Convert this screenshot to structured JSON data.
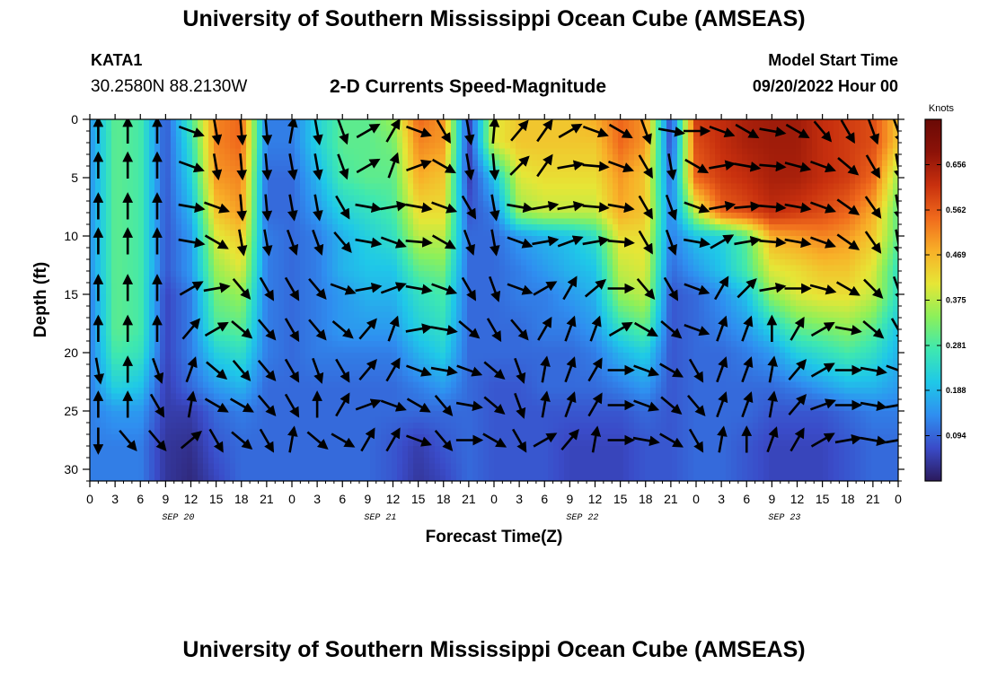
{
  "header": {
    "title": "University of Southern Mississippi Ocean Cube (AMSEAS)",
    "station_id": "KATA1",
    "coordinates": "30.2580N  88.2130W",
    "plot_title": "2-D Currents Speed-Magnitude",
    "model_start_label": "Model Start Time",
    "model_start_value": "09/20/2022 Hour 00"
  },
  "footer": {
    "title": "University of Southern Mississippi Ocean Cube (AMSEAS)"
  },
  "chart_data": {
    "type": "heatmap",
    "xlabel": "Forecast Time(Z)",
    "ylabel": "Depth (ft)",
    "x_tick_labels": [
      "0",
      "3",
      "6",
      "9",
      "12",
      "15",
      "18",
      "21",
      "0",
      "3",
      "6",
      "9",
      "12",
      "15",
      "18",
      "21",
      "0",
      "3",
      "6",
      "9",
      "12",
      "15",
      "18",
      "21",
      "0",
      "3",
      "6",
      "9",
      "12",
      "15",
      "18",
      "21",
      "0"
    ],
    "date_labels": [
      "SEP 20",
      "SEP 21",
      "SEP 22",
      "SEP 23"
    ],
    "date_label_hours": [
      10.5,
      34.5,
      58.5,
      82.5
    ],
    "x_range_hours": [
      0,
      96
    ],
    "y_ticks": [
      "0",
      "5",
      "10",
      "15",
      "20",
      "25",
      "30"
    ],
    "y_range": [
      0,
      31
    ],
    "y_reversed": true,
    "colorbar": {
      "unit": "Knots",
      "ticks": [
        "0.656",
        "0.562",
        "0.469",
        "0.375",
        "0.281",
        "0.188",
        "0.094"
      ],
      "range": [
        0,
        0.75
      ],
      "colors": [
        "#2b1a5c",
        "#3a4bc8",
        "#2f8ef0",
        "#1fc8e8",
        "#3ee8b0",
        "#8cf05a",
        "#e6e636",
        "#f8b028",
        "#f06a1c",
        "#c8300e",
        "#8c1208",
        "#6a0a06"
      ]
    },
    "speed_field": {
      "description_units": "knots",
      "times": [
        0,
        3,
        6,
        9,
        12,
        15,
        18,
        21,
        24,
        27,
        30,
        33,
        36,
        39,
        42,
        45,
        48,
        51,
        54,
        57,
        60,
        63,
        66,
        69,
        72,
        75,
        78,
        81,
        84,
        87,
        90,
        93,
        96
      ],
      "depths": [
        0,
        2,
        5,
        8,
        10,
        13,
        15,
        18,
        20,
        23,
        25,
        28,
        31
      ],
      "values": [
        [
          0.15,
          0.3,
          0.28,
          0.08,
          0.28,
          0.52,
          0.55,
          0.12,
          0.12,
          0.22,
          0.3,
          0.3,
          0.35,
          0.55,
          0.5,
          0.05,
          0.4,
          0.45,
          0.45,
          0.45,
          0.48,
          0.55,
          0.5,
          0.06,
          0.6,
          0.62,
          0.65,
          0.66,
          0.66,
          0.62,
          0.6,
          0.58,
          0.45
        ],
        [
          0.14,
          0.3,
          0.28,
          0.08,
          0.25,
          0.52,
          0.55,
          0.12,
          0.12,
          0.22,
          0.3,
          0.3,
          0.32,
          0.52,
          0.5,
          0.05,
          0.4,
          0.45,
          0.45,
          0.45,
          0.45,
          0.55,
          0.5,
          0.06,
          0.58,
          0.62,
          0.65,
          0.66,
          0.66,
          0.62,
          0.6,
          0.58,
          0.45
        ],
        [
          0.14,
          0.3,
          0.28,
          0.08,
          0.22,
          0.5,
          0.52,
          0.1,
          0.1,
          0.18,
          0.28,
          0.3,
          0.3,
          0.48,
          0.45,
          0.05,
          0.2,
          0.4,
          0.42,
          0.42,
          0.42,
          0.5,
          0.45,
          0.1,
          0.55,
          0.6,
          0.62,
          0.65,
          0.65,
          0.62,
          0.6,
          0.55,
          0.35
        ],
        [
          0.14,
          0.3,
          0.28,
          0.08,
          0.18,
          0.45,
          0.5,
          0.1,
          0.1,
          0.15,
          0.22,
          0.25,
          0.28,
          0.42,
          0.42,
          0.08,
          0.12,
          0.35,
          0.38,
          0.38,
          0.38,
          0.48,
          0.45,
          0.12,
          0.38,
          0.55,
          0.58,
          0.62,
          0.6,
          0.58,
          0.55,
          0.48,
          0.3
        ],
        [
          0.14,
          0.3,
          0.28,
          0.08,
          0.15,
          0.4,
          0.45,
          0.12,
          0.1,
          0.12,
          0.18,
          0.22,
          0.25,
          0.38,
          0.38,
          0.1,
          0.1,
          0.15,
          0.18,
          0.2,
          0.25,
          0.42,
          0.42,
          0.12,
          0.2,
          0.22,
          0.3,
          0.48,
          0.5,
          0.52,
          0.5,
          0.45,
          0.3
        ],
        [
          0.14,
          0.3,
          0.28,
          0.08,
          0.15,
          0.35,
          0.4,
          0.12,
          0.1,
          0.12,
          0.18,
          0.2,
          0.2,
          0.3,
          0.32,
          0.1,
          0.1,
          0.12,
          0.15,
          0.18,
          0.2,
          0.38,
          0.4,
          0.1,
          0.15,
          0.2,
          0.28,
          0.4,
          0.42,
          0.45,
          0.45,
          0.4,
          0.25
        ],
        [
          0.12,
          0.3,
          0.28,
          0.06,
          0.12,
          0.32,
          0.35,
          0.12,
          0.1,
          0.12,
          0.15,
          0.18,
          0.18,
          0.25,
          0.28,
          0.1,
          0.1,
          0.12,
          0.12,
          0.15,
          0.18,
          0.35,
          0.38,
          0.08,
          0.1,
          0.14,
          0.2,
          0.35,
          0.4,
          0.42,
          0.42,
          0.38,
          0.25
        ],
        [
          0.12,
          0.3,
          0.28,
          0.06,
          0.12,
          0.28,
          0.3,
          0.12,
          0.1,
          0.12,
          0.15,
          0.15,
          0.15,
          0.22,
          0.25,
          0.1,
          0.1,
          0.1,
          0.12,
          0.12,
          0.15,
          0.25,
          0.3,
          0.08,
          0.1,
          0.12,
          0.15,
          0.22,
          0.3,
          0.32,
          0.34,
          0.3,
          0.2
        ],
        [
          0.12,
          0.28,
          0.26,
          0.06,
          0.12,
          0.22,
          0.25,
          0.12,
          0.1,
          0.12,
          0.12,
          0.12,
          0.12,
          0.18,
          0.22,
          0.1,
          0.1,
          0.1,
          0.1,
          0.1,
          0.12,
          0.18,
          0.22,
          0.08,
          0.1,
          0.1,
          0.12,
          0.15,
          0.22,
          0.25,
          0.28,
          0.25,
          0.18
        ],
        [
          0.12,
          0.22,
          0.2,
          0.05,
          0.1,
          0.15,
          0.18,
          0.1,
          0.1,
          0.1,
          0.1,
          0.1,
          0.1,
          0.12,
          0.15,
          0.1,
          0.08,
          0.08,
          0.1,
          0.1,
          0.1,
          0.12,
          0.15,
          0.08,
          0.1,
          0.1,
          0.1,
          0.1,
          0.12,
          0.15,
          0.18,
          0.18,
          0.15
        ],
        [
          0.12,
          0.15,
          0.15,
          0.05,
          0.05,
          0.1,
          0.12,
          0.1,
          0.1,
          0.1,
          0.1,
          0.1,
          0.1,
          0.1,
          0.1,
          0.1,
          0.08,
          0.08,
          0.08,
          0.08,
          0.08,
          0.08,
          0.1,
          0.08,
          0.1,
          0.1,
          0.1,
          0.08,
          0.08,
          0.08,
          0.1,
          0.12,
          0.12
        ],
        [
          0.12,
          0.12,
          0.12,
          0.04,
          0.03,
          0.08,
          0.1,
          0.1,
          0.1,
          0.1,
          0.1,
          0.1,
          0.08,
          0.05,
          0.08,
          0.1,
          0.08,
          0.08,
          0.08,
          0.06,
          0.06,
          0.06,
          0.08,
          0.08,
          0.1,
          0.1,
          0.08,
          0.06,
          0.06,
          0.06,
          0.08,
          0.1,
          0.1
        ],
        [
          0.12,
          0.12,
          0.12,
          0.04,
          0.02,
          0.06,
          0.1,
          0.1,
          0.1,
          0.1,
          0.1,
          0.1,
          0.08,
          0.04,
          0.06,
          0.1,
          0.08,
          0.08,
          0.08,
          0.06,
          0.06,
          0.06,
          0.08,
          0.08,
          0.1,
          0.1,
          0.08,
          0.06,
          0.06,
          0.06,
          0.08,
          0.1,
          0.1
        ]
      ]
    },
    "vectors": {
      "description": "current direction arrows; angle in degrees clockwise from north (up)",
      "times": [
        1,
        4.5,
        8,
        12,
        15,
        18,
        21,
        24,
        27,
        30,
        33,
        36,
        39,
        42,
        45,
        48,
        51,
        54,
        57,
        60,
        63,
        66,
        69,
        72,
        75,
        78,
        81,
        84,
        87,
        90,
        93,
        96
      ],
      "depths": [
        1,
        4,
        7.5,
        10.5,
        14.5,
        18,
        21.5,
        24.5,
        27.5
      ],
      "angles": [
        [
          0,
          0,
          0,
          110,
          170,
          175,
          175,
          10,
          170,
          160,
          60,
          30,
          110,
          150,
          170,
          5,
          40,
          35,
          60,
          110,
          120,
          160,
          100,
          90,
          110,
          120,
          100,
          120,
          140,
          150,
          160,
          160
        ],
        [
          0,
          0,
          0,
          110,
          170,
          175,
          175,
          170,
          170,
          160,
          60,
          20,
          70,
          120,
          170,
          175,
          45,
          35,
          80,
          95,
          110,
          150,
          170,
          120,
          80,
          100,
          95,
          105,
          110,
          130,
          150,
          170
        ],
        [
          0,
          0,
          0,
          100,
          110,
          175,
          175,
          170,
          170,
          150,
          100,
          80,
          100,
          110,
          150,
          170,
          100,
          80,
          80,
          95,
          100,
          150,
          160,
          110,
          80,
          85,
          95,
          100,
          110,
          125,
          145,
          170
        ],
        [
          0,
          0,
          0,
          100,
          120,
          170,
          170,
          160,
          160,
          140,
          100,
          110,
          95,
          120,
          160,
          170,
          110,
          80,
          70,
          80,
          95,
          150,
          160,
          100,
          60,
          80,
          95,
          100,
          110,
          125,
          145,
          170
        ],
        [
          0,
          0,
          0,
          60,
          80,
          140,
          150,
          150,
          140,
          110,
          80,
          70,
          100,
          110,
          150,
          160,
          110,
          60,
          30,
          50,
          90,
          140,
          150,
          110,
          30,
          45,
          80,
          90,
          105,
          120,
          135,
          160
        ],
        [
          0,
          0,
          0,
          40,
          60,
          130,
          140,
          150,
          140,
          130,
          40,
          20,
          80,
          100,
          130,
          150,
          140,
          30,
          20,
          20,
          60,
          120,
          130,
          110,
          20,
          20,
          0,
          30,
          60,
          100,
          130,
          150
        ],
        [
          170,
          0,
          160,
          20,
          130,
          140,
          140,
          150,
          160,
          150,
          40,
          30,
          110,
          100,
          110,
          130,
          160,
          10,
          20,
          30,
          90,
          110,
          120,
          150,
          20,
          20,
          10,
          40,
          60,
          90,
          100,
          110
        ],
        [
          0,
          0,
          150,
          10,
          120,
          120,
          140,
          150,
          0,
          30,
          70,
          110,
          120,
          140,
          100,
          130,
          160,
          10,
          20,
          30,
          90,
          110,
          130,
          140,
          20,
          20,
          10,
          40,
          70,
          90,
          100,
          80
        ],
        [
          180,
          140,
          140,
          50,
          150,
          130,
          150,
          10,
          130,
          120,
          30,
          30,
          110,
          140,
          90,
          120,
          150,
          60,
          40,
          10,
          90,
          100,
          120,
          150,
          10,
          0,
          20,
          30,
          60,
          80,
          100,
          80
        ]
      ]
    }
  }
}
